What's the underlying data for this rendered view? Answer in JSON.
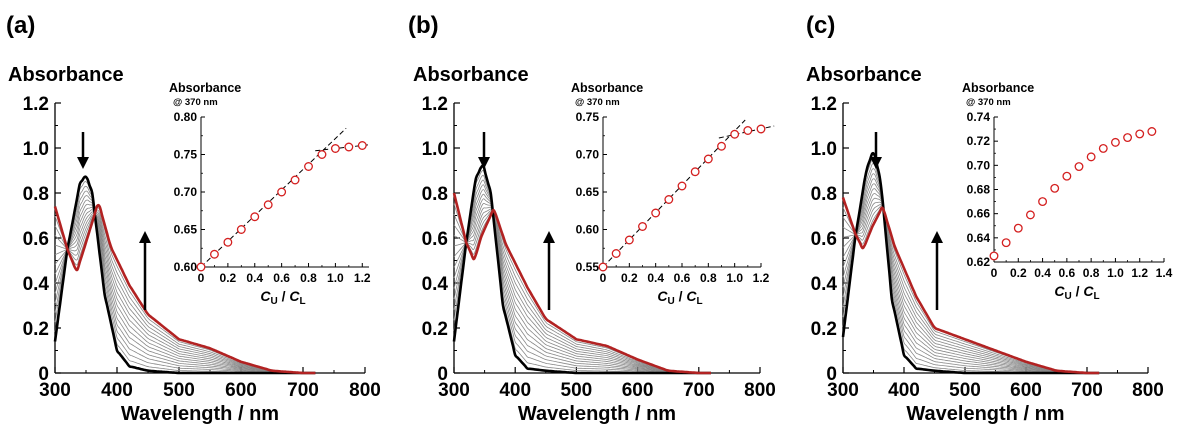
{
  "chart_data": [
    {
      "panel_label": "(a)",
      "type": "line",
      "ylabel": "Absorbance",
      "xlabel": "Wavelength / nm",
      "xlim": [
        300,
        800
      ],
      "ylim": [
        0,
        1.2
      ],
      "xticks": [
        "300",
        "400",
        "500",
        "600",
        "700",
        "800"
      ],
      "yticks": [
        "0",
        "0.2",
        "0.4",
        "0.6",
        "0.8",
        "1.0",
        "1.2"
      ],
      "series": [
        {
          "color": "#000000",
          "peak_nm": 350,
          "peak_abs": 0.88,
          "x": [
            300,
            320,
            340,
            350,
            360,
            380,
            400,
            420,
            450,
            500
          ],
          "y": [
            0.14,
            0.55,
            0.84,
            0.88,
            0.8,
            0.35,
            0.1,
            0.03,
            0.01,
            0.0
          ]
        },
        {
          "color": "#b22222",
          "peak_nm": 370,
          "peak_abs": 0.76,
          "x": [
            300,
            320,
            335,
            350,
            370,
            390,
            420,
            450,
            500,
            550,
            600,
            650,
            700
          ],
          "y": [
            0.74,
            0.55,
            0.45,
            0.58,
            0.76,
            0.56,
            0.39,
            0.26,
            0.15,
            0.11,
            0.05,
            0.01,
            0.0
          ]
        }
      ],
      "inset": {
        "ytitle": "Absorbance",
        "ysubtitle": "@ 370 nm",
        "xlabel_main_1": "C",
        "xlabel_sub_1": "U",
        "xlabel_sep": " / ",
        "xlabel_main_2": "C",
        "xlabel_sub_2": "L",
        "xlim": [
          0,
          1.25
        ],
        "ylim": [
          0.6,
          0.8
        ],
        "xticks": [
          "0",
          "0.2",
          "0.4",
          "0.6",
          "0.8",
          "1.0",
          "1.2"
        ],
        "yticks": [
          "0.60",
          "0.65",
          "0.70",
          "0.75",
          "0.80"
        ],
        "points": {
          "x": [
            0,
            0.1,
            0.2,
            0.3,
            0.4,
            0.5,
            0.6,
            0.7,
            0.8,
            0.9,
            1.0,
            1.1,
            1.2
          ],
          "y": [
            0.6,
            0.617,
            0.633,
            0.65,
            0.667,
            0.683,
            0.7,
            0.716,
            0.734,
            0.75,
            0.758,
            0.76,
            0.762
          ]
        },
        "fit_lines": [
          {
            "x": [
              0,
              1.08
            ],
            "y": [
              0.6,
              0.785
            ]
          },
          {
            "x": [
              0.85,
              1.25
            ],
            "y": [
              0.755,
              0.763
            ]
          }
        ]
      }
    },
    {
      "panel_label": "(b)",
      "type": "line",
      "ylabel": "Absorbance",
      "xlabel": "Wavelength / nm",
      "xlim": [
        300,
        800
      ],
      "ylim": [
        0,
        1.2
      ],
      "xticks": [
        "300",
        "400",
        "500",
        "600",
        "700",
        "800"
      ],
      "yticks": [
        "0",
        "0.2",
        "0.4",
        "0.6",
        "0.8",
        "1.0",
        "1.2"
      ],
      "series": [
        {
          "color": "#000000",
          "peak_nm": 347,
          "peak_abs": 0.93,
          "x": [
            300,
            320,
            335,
            347,
            360,
            380,
            400,
            420,
            450,
            500
          ],
          "y": [
            0.14,
            0.58,
            0.86,
            0.93,
            0.8,
            0.3,
            0.08,
            0.02,
            0.01,
            0.0
          ]
        },
        {
          "color": "#b22222",
          "peak_nm": 365,
          "peak_abs": 0.73,
          "x": [
            300,
            320,
            333,
            345,
            365,
            385,
            420,
            450,
            500,
            550,
            600,
            650,
            700
          ],
          "y": [
            0.8,
            0.58,
            0.5,
            0.61,
            0.73,
            0.57,
            0.38,
            0.24,
            0.15,
            0.12,
            0.06,
            0.01,
            0.0
          ]
        }
      ],
      "inset": {
        "ytitle": "Absorbance",
        "ysubtitle": "@ 370 nm",
        "xlabel_main_1": "C",
        "xlabel_sub_1": "U",
        "xlabel_sep": " / ",
        "xlabel_main_2": "C",
        "xlabel_sub_2": "L",
        "xlim": [
          0,
          1.2
        ],
        "ylim": [
          0.55,
          0.75
        ],
        "xticks": [
          "0",
          "0.2",
          "0.4",
          "0.6",
          "0.8",
          "1.0",
          "1.2"
        ],
        "yticks": [
          "0.55",
          "0.60",
          "0.65",
          "0.70",
          "0.75"
        ],
        "points": {
          "x": [
            0,
            0.1,
            0.2,
            0.3,
            0.4,
            0.5,
            0.6,
            0.7,
            0.8,
            0.9,
            1.0,
            1.1,
            1.2
          ],
          "y": [
            0.55,
            0.568,
            0.586,
            0.604,
            0.622,
            0.64,
            0.658,
            0.677,
            0.694,
            0.711,
            0.727,
            0.732,
            0.734
          ]
        },
        "fit_lines": [
          {
            "x": [
              0,
              1.08
            ],
            "y": [
              0.55,
              0.746
            ]
          },
          {
            "x": [
              0.88,
              1.3
            ],
            "y": [
              0.722,
              0.738
            ]
          }
        ]
      }
    },
    {
      "panel_label": "(c)",
      "type": "line",
      "ylabel": "Absorbance",
      "xlabel": "Wavelength / nm",
      "xlim": [
        300,
        800
      ],
      "ylim": [
        0,
        1.2
      ],
      "xticks": [
        "300",
        "400",
        "500",
        "600",
        "700",
        "800"
      ],
      "yticks": [
        "0",
        "0.2",
        "0.4",
        "0.6",
        "0.8",
        "1.0",
        "1.2"
      ],
      "series": [
        {
          "color": "#000000",
          "peak_nm": 350,
          "peak_abs": 0.99,
          "x": [
            300,
            320,
            338,
            350,
            362,
            380,
            400,
            420,
            450,
            500
          ],
          "y": [
            0.16,
            0.6,
            0.9,
            0.99,
            0.85,
            0.33,
            0.08,
            0.02,
            0.01,
            0.0
          ]
        },
        {
          "color": "#b22222",
          "peak_nm": 365,
          "peak_abs": 0.74,
          "x": [
            300,
            320,
            333,
            348,
            365,
            385,
            420,
            450,
            500,
            550,
            600,
            650,
            700
          ],
          "y": [
            0.78,
            0.62,
            0.55,
            0.65,
            0.74,
            0.56,
            0.34,
            0.2,
            0.15,
            0.1,
            0.05,
            0.01,
            0.0
          ]
        }
      ],
      "inset": {
        "ytitle": "Absorbance",
        "ysubtitle": "@ 370 nm",
        "xlabel_main_1": "C",
        "xlabel_sub_1": "U",
        "xlabel_sep": " / ",
        "xlabel_main_2": "C",
        "xlabel_sub_2": "L",
        "xlim": [
          0,
          1.4
        ],
        "ylim": [
          0.62,
          0.74
        ],
        "xticks": [
          "0",
          "0.2",
          "0.4",
          "0.6",
          "0.8",
          "1.0",
          "1.2",
          "1.4"
        ],
        "yticks": [
          "0.62",
          "0.64",
          "0.66",
          "0.68",
          "0.70",
          "0.72",
          "0.74"
        ],
        "points": {
          "x": [
            0,
            0.1,
            0.2,
            0.3,
            0.4,
            0.5,
            0.6,
            0.7,
            0.8,
            0.9,
            1.0,
            1.1,
            1.2,
            1.3
          ],
          "y": [
            0.625,
            0.636,
            0.648,
            0.659,
            0.67,
            0.681,
            0.691,
            0.699,
            0.707,
            0.714,
            0.719,
            0.723,
            0.726,
            0.728
          ]
        },
        "fit_lines": []
      }
    }
  ]
}
